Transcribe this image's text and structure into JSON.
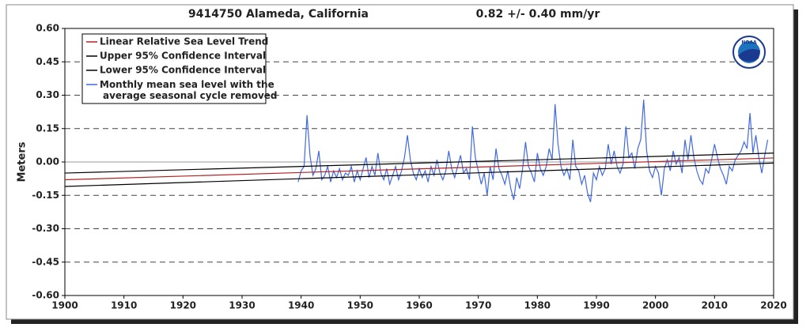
{
  "chart_data": {
    "type": "line",
    "title": "9414750 Alameda, California",
    "subtitle": "0.82 +/-  0.40 mm/yr",
    "ylabel": "Meters",
    "logo_text": "NOAA",
    "xlim": [
      1900,
      2020
    ],
    "ylim": [
      -0.6,
      0.6
    ],
    "xticks": [
      1900,
      1910,
      1920,
      1930,
      1940,
      1950,
      1960,
      1970,
      1980,
      1990,
      2000,
      2010,
      2020
    ],
    "yticks": [
      {
        "value": 0.6,
        "label": "0.60"
      },
      {
        "value": 0.45,
        "label": "0.45"
      },
      {
        "value": 0.3,
        "label": "0.30"
      },
      {
        "value": 0.15,
        "label": "0.15"
      },
      {
        "value": 0,
        "label": "0.00"
      },
      {
        "value": -0.15,
        "label": "-0.15"
      },
      {
        "value": -0.3,
        "label": "-0.30"
      },
      {
        "value": -0.45,
        "label": "-0.45"
      },
      {
        "value": -0.6,
        "label": "-0.60"
      }
    ],
    "grid": true,
    "legend": "upper left",
    "series": [
      {
        "name": "Linear Relative Sea Level Trend",
        "color": "#b22222",
        "x": [
          1900,
          2020
        ],
        "values": [
          -0.08,
          0.018
        ]
      },
      {
        "name": "Upper 95% Confidence Interval",
        "color": "#000000",
        "x": [
          1900,
          2020
        ],
        "values": [
          -0.05,
          0.04
        ]
      },
      {
        "name": "Lower 95% Confidence Interval",
        "color": "#000000",
        "x": [
          1900,
          2020
        ],
        "values": [
          -0.11,
          -0.005
        ]
      },
      {
        "name": "Monthly mean sea level with the\naverage seasonal cycle removed",
        "color": "#4169e1",
        "x": [
          1939.5,
          1940,
          1940.5,
          1941,
          1941.5,
          1942,
          1942.5,
          1943,
          1943.5,
          1944,
          1944.5,
          1945,
          1945.5,
          1946,
          1946.5,
          1947,
          1947.5,
          1948,
          1948.5,
          1949,
          1949.5,
          1950,
          1950.5,
          1951,
          1951.5,
          1952,
          1952.5,
          1953,
          1953.5,
          1954,
          1954.5,
          1955,
          1955.5,
          1956,
          1956.5,
          1957,
          1957.5,
          1958,
          1958.5,
          1959,
          1959.5,
          1960,
          1960.5,
          1961,
          1961.5,
          1962,
          1962.5,
          1963,
          1963.5,
          1964,
          1964.5,
          1965,
          1965.5,
          1966,
          1966.5,
          1967,
          1967.5,
          1968,
          1968.5,
          1969,
          1969.5,
          1970,
          1970.5,
          1971,
          1971.5,
          1972,
          1972.5,
          1973,
          1973.5,
          1974,
          1974.5,
          1975,
          1975.5,
          1976,
          1976.5,
          1977,
          1977.5,
          1978,
          1978.5,
          1979,
          1979.5,
          1980,
          1980.5,
          1981,
          1981.5,
          1982,
          1982.5,
          1983,
          1983.5,
          1984,
          1984.5,
          1985,
          1985.5,
          1986,
          1986.5,
          1987,
          1987.5,
          1988,
          1988.5,
          1989,
          1989.5,
          1990,
          1990.5,
          1991,
          1991.5,
          1992,
          1992.5,
          1993,
          1993.5,
          1994,
          1994.5,
          1995,
          1995.5,
          1996,
          1996.5,
          1997,
          1997.5,
          1998,
          1998.5,
          1999,
          1999.5,
          2000,
          2000.5,
          2001,
          2001.5,
          2002,
          2002.5,
          2003,
          2003.5,
          2004,
          2004.5,
          2005,
          2005.5,
          2006,
          2006.5,
          2007,
          2007.5,
          2008,
          2008.5,
          2009,
          2009.5,
          2010,
          2010.5,
          2011,
          2011.5,
          2012,
          2012.5,
          2013,
          2013.5,
          2014,
          2014.5,
          2015,
          2015.5,
          2016,
          2016.5,
          2017,
          2017.5,
          2018,
          2018.5,
          2019
        ],
        "values": [
          -0.09,
          -0.04,
          -0.02,
          0.21,
          0.03,
          -0.06,
          -0.03,
          0.05,
          -0.08,
          -0.06,
          -0.02,
          -0.09,
          -0.04,
          -0.07,
          -0.03,
          -0.08,
          -0.05,
          -0.06,
          -0.02,
          -0.09,
          -0.04,
          -0.08,
          -0.03,
          0.02,
          -0.07,
          -0.02,
          -0.06,
          0.04,
          -0.05,
          -0.08,
          -0.03,
          -0.1,
          -0.06,
          -0.02,
          -0.08,
          -0.04,
          0.02,
          0.12,
          0.01,
          -0.05,
          -0.08,
          -0.03,
          -0.07,
          -0.04,
          -0.09,
          -0.02,
          -0.06,
          0.01,
          -0.05,
          -0.08,
          -0.04,
          0.05,
          -0.03,
          -0.07,
          -0.02,
          0.03,
          -0.05,
          -0.03,
          -0.08,
          0.16,
          0.02,
          -0.04,
          -0.1,
          -0.05,
          -0.15,
          -0.02,
          -0.08,
          0.06,
          -0.03,
          -0.06,
          -0.1,
          -0.04,
          -0.12,
          -0.17,
          -0.07,
          -0.12,
          -0.03,
          0.09,
          -0.02,
          -0.05,
          -0.09,
          0.04,
          -0.03,
          -0.06,
          -0.02,
          0.06,
          0.01,
          0.26,
          0.08,
          -0.02,
          -0.06,
          -0.03,
          -0.08,
          0.1,
          -0.02,
          -0.04,
          -0.1,
          -0.06,
          -0.14,
          -0.18,
          -0.05,
          -0.08,
          -0.02,
          -0.06,
          -0.03,
          0.08,
          -0.01,
          0.05,
          -0.02,
          -0.05,
          -0.01,
          0.16,
          0.02,
          0.04,
          -0.03,
          0.06,
          0.1,
          0.28,
          0.05,
          -0.04,
          -0.07,
          -0.02,
          -0.05,
          -0.15,
          -0.03,
          0.01,
          -0.04,
          0.05,
          -0.01,
          0.02,
          -0.05,
          0.1,
          0.01,
          0.12,
          0.02,
          -0.04,
          -0.08,
          -0.1,
          -0.03,
          -0.05,
          0.01,
          0.08,
          0.02,
          -0.03,
          -0.06,
          -0.1,
          -0.02,
          -0.04,
          0.01,
          0.03,
          0.05,
          0.09,
          0.06,
          0.22,
          0.04,
          0.12,
          0.02,
          -0.05,
          0.03,
          0.1
        ]
      }
    ]
  }
}
